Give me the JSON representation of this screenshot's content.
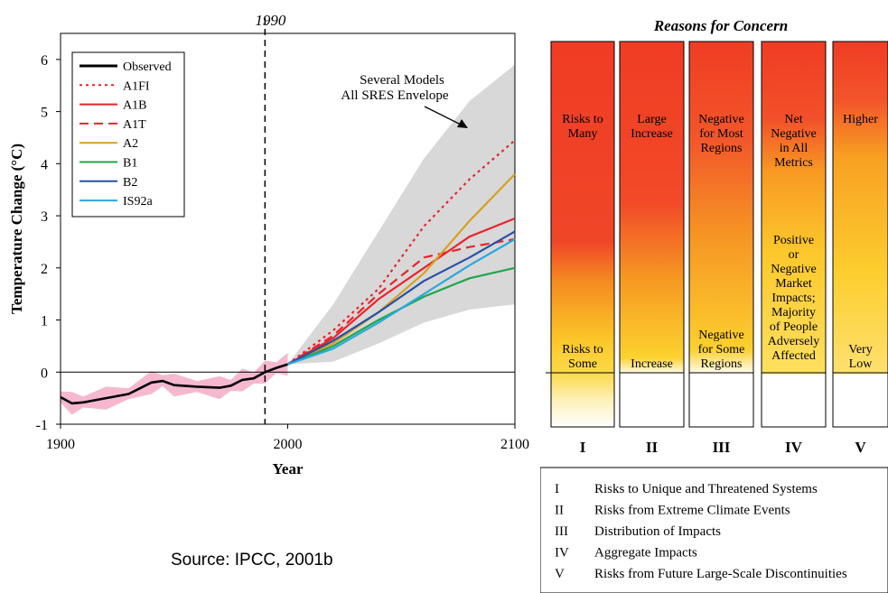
{
  "chart_data": {
    "type": "line",
    "top_label": "1990",
    "xlabel": "Year",
    "ylabel": "Temperature Change (°C)",
    "xlim": [
      1900,
      2100
    ],
    "ylim": [
      -1,
      6.5
    ],
    "x_ticks": [
      1900,
      2000,
      2100
    ],
    "y_ticks": [
      -1,
      0,
      1,
      2,
      3,
      4,
      5,
      6
    ],
    "vertical_marker_year": 1990,
    "annotation": [
      "Several Models",
      "All SRES Envelope"
    ],
    "envelope": {
      "x": [
        2000,
        2020,
        2040,
        2060,
        2080,
        2100
      ],
      "upper": [
        0.15,
        1.3,
        2.7,
        4.1,
        5.2,
        5.9
      ],
      "lower": [
        0.15,
        0.2,
        0.55,
        0.95,
        1.2,
        1.3
      ]
    },
    "series": [
      {
        "name": "Observed",
        "color": "#000000",
        "dash": "none",
        "x": [
          1900,
          1905,
          1910,
          1920,
          1930,
          1940,
          1945,
          1950,
          1960,
          1970,
          1975,
          1980,
          1985,
          1990,
          1995,
          2000
        ],
        "values": [
          -0.48,
          -0.6,
          -0.58,
          -0.5,
          -0.42,
          -0.2,
          -0.17,
          -0.25,
          -0.28,
          -0.3,
          -0.26,
          -0.15,
          -0.12,
          0.0,
          0.08,
          0.15
        ]
      },
      {
        "name": "A1FI",
        "color": "#e8242b",
        "dash": "dotted",
        "x": [
          2000,
          2020,
          2040,
          2060,
          2080,
          2100
        ],
        "values": [
          0.15,
          0.8,
          1.6,
          2.8,
          3.7,
          4.45
        ]
      },
      {
        "name": "A1B",
        "color": "#e8242b",
        "dash": "none",
        "x": [
          2000,
          2020,
          2040,
          2060,
          2080,
          2100
        ],
        "values": [
          0.15,
          0.65,
          1.4,
          2.0,
          2.6,
          2.95
        ]
      },
      {
        "name": "A1T",
        "color": "#e8242b",
        "dash": "dashed",
        "x": [
          2000,
          2020,
          2040,
          2060,
          2080,
          2100
        ],
        "values": [
          0.15,
          0.7,
          1.5,
          2.2,
          2.4,
          2.55
        ]
      },
      {
        "name": "A2",
        "color": "#d9a021",
        "dash": "none",
        "x": [
          2000,
          2020,
          2040,
          2060,
          2080,
          2100
        ],
        "values": [
          0.15,
          0.55,
          1.15,
          1.9,
          2.9,
          3.8
        ]
      },
      {
        "name": "B1",
        "color": "#1ea64a",
        "dash": "none",
        "x": [
          2000,
          2020,
          2040,
          2060,
          2080,
          2100
        ],
        "values": [
          0.15,
          0.5,
          1.0,
          1.45,
          1.8,
          2.0
        ]
      },
      {
        "name": "B2",
        "color": "#2751a6",
        "dash": "none",
        "x": [
          2000,
          2020,
          2040,
          2060,
          2080,
          2100
        ],
        "values": [
          0.15,
          0.6,
          1.15,
          1.75,
          2.2,
          2.7
        ]
      },
      {
        "name": "IS92a",
        "color": "#29a8e0",
        "dash": "none",
        "x": [
          2000,
          2020,
          2040,
          2060,
          2080,
          2100
        ],
        "values": [
          0.15,
          0.45,
          0.95,
          1.5,
          2.05,
          2.55
        ]
      }
    ]
  },
  "reasons": {
    "title": "Reasons for Concern",
    "columns": [
      {
        "numeral": "I",
        "upper_label": [
          "Risks to",
          "Many"
        ],
        "middle_label": [],
        "lower_label": [
          "Risks to",
          "Some"
        ]
      },
      {
        "numeral": "II",
        "upper_label": [
          "Large",
          "Increase"
        ],
        "middle_label": [],
        "lower_label": [
          "Increase"
        ]
      },
      {
        "numeral": "III",
        "upper_label": [
          "Negative",
          "for Most",
          "Regions"
        ],
        "middle_label": [],
        "lower_label": [
          "Negative",
          "for Some",
          "Regions"
        ]
      },
      {
        "numeral": "IV",
        "upper_label": [
          "Net",
          "Negative",
          "in All",
          "Metrics"
        ],
        "middle_label": [
          "Positive",
          "or",
          "Negative",
          "Market",
          "Impacts;",
          "Majority",
          "of People",
          "Adversely",
          "Affected"
        ],
        "lower_label": []
      },
      {
        "numeral": "V",
        "upper_label": [
          "Higher"
        ],
        "middle_label": [],
        "lower_label": [
          "Very",
          "Low"
        ]
      }
    ],
    "legend": [
      {
        "numeral": "I",
        "text": "Risks to Unique and Threatened Systems"
      },
      {
        "numeral": "II",
        "text": "Risks from Extreme Climate Events"
      },
      {
        "numeral": "III",
        "text": "Distribution of Impacts"
      },
      {
        "numeral": "IV",
        "text": "Aggregate Impacts"
      },
      {
        "numeral": "V",
        "text": "Risks from Future Large-Scale Discontinuities"
      }
    ]
  },
  "source": "Source: IPCC, 2001b"
}
